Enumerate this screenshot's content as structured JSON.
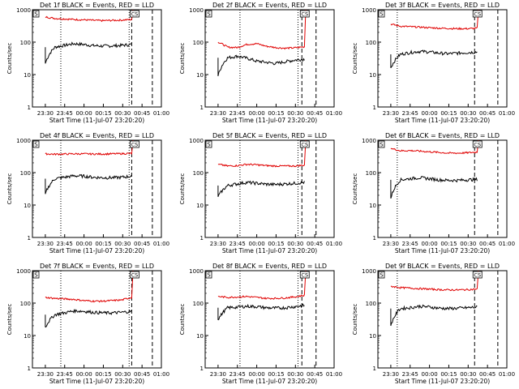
{
  "figure": {
    "xlabel": "Start Time (11-Jul-07 23:20:20)",
    "ylabel": "Counts/sec",
    "x_ticks": [
      "23:30",
      "23:45",
      "00:00",
      "00:15",
      "00:30",
      "00:45",
      "01:00"
    ],
    "y_ticks": [
      "1",
      "10",
      "100",
      "1000"
    ],
    "flag_left": "S",
    "flag_right": "CS"
  },
  "colors": {
    "events": "#000000",
    "lld": "#e00000",
    "axes": "#000000",
    "background": "#ffffff"
  },
  "chart_data": [
    {
      "type": "line",
      "title": "Det 1f BLACK = Events, RED = LLD",
      "yscale": "log",
      "ylim": [
        1,
        1000
      ],
      "series": [
        {
          "name": "Events",
          "color": "#000000",
          "values": [
            22,
            70,
            80,
            90,
            85,
            78,
            76,
            77,
            80,
            85
          ]
        },
        {
          "name": "LLD",
          "color": "#e00000",
          "values": [
            600,
            540,
            520,
            500,
            490,
            470,
            460,
            470,
            480,
            500
          ]
        }
      ],
      "spike": {
        "name": "LLD",
        "peak": 1000
      },
      "markers": {
        "dotted": [
          "23:42",
          "00:35"
        ],
        "dashed": [
          "00:37",
          "00:53"
        ]
      }
    },
    {
      "type": "line",
      "title": "Det 2f BLACK = Events, RED = LLD",
      "yscale": "log",
      "ylim": [
        1,
        1000
      ],
      "series": [
        {
          "name": "Events",
          "color": "#000000",
          "values": [
            9,
            33,
            37,
            32,
            26,
            24,
            22,
            25,
            28,
            30
          ]
        },
        {
          "name": "LLD",
          "color": "#e00000",
          "values": [
            100,
            70,
            68,
            85,
            90,
            75,
            68,
            65,
            67,
            72
          ]
        }
      ],
      "spike": {
        "name": "LLD",
        "peak": 1000
      },
      "markers": {
        "dotted": [
          "23:47",
          "00:32"
        ],
        "dashed": [
          "00:35",
          "00:46"
        ]
      }
    },
    {
      "type": "line",
      "title": "Det 3f BLACK = Events, RED = LLD",
      "yscale": "log",
      "ylim": [
        1,
        1000
      ],
      "series": [
        {
          "name": "Events",
          "color": "#000000",
          "values": [
            16,
            42,
            48,
            52,
            50,
            46,
            44,
            46,
            48,
            50
          ]
        },
        {
          "name": "LLD",
          "color": "#e00000",
          "values": [
            360,
            310,
            300,
            290,
            280,
            270,
            265,
            260,
            260,
            270
          ]
        }
      ],
      "spike": {
        "name": "LLD",
        "peak": 1000
      },
      "markers": {
        "dotted": [
          "23:35"
        ],
        "dashed": [
          "00:35",
          "00:53"
        ]
      }
    },
    {
      "type": "line",
      "title": "Det 4f BLACK = Events, RED = LLD",
      "yscale": "log",
      "ylim": [
        1,
        1000
      ],
      "series": [
        {
          "name": "Events",
          "color": "#000000",
          "values": [
            22,
            65,
            72,
            80,
            78,
            72,
            70,
            70,
            72,
            78
          ]
        },
        {
          "name": "LLD",
          "color": "#e00000",
          "values": [
            380,
            370,
            375,
            380,
            380,
            375,
            375,
            380,
            385,
            390
          ]
        }
      ],
      "spike": {
        "name": "LLD",
        "peak": 1000
      },
      "markers": {
        "dotted": [
          "23:42",
          "00:35"
        ],
        "dashed": [
          "00:37",
          "00:53"
        ]
      }
    },
    {
      "type": "line",
      "title": "Det 5f BLACK = Events, RED = LLD",
      "yscale": "log",
      "ylim": [
        1,
        1000
      ],
      "series": [
        {
          "name": "Events",
          "color": "#000000",
          "values": [
            18,
            40,
            45,
            50,
            47,
            44,
            43,
            45,
            47,
            50
          ]
        },
        {
          "name": "LLD",
          "color": "#e00000",
          "values": [
            180,
            160,
            165,
            180,
            175,
            165,
            160,
            160,
            160,
            170
          ]
        }
      ],
      "spike": {
        "name": "LLD",
        "peak": 1000
      },
      "markers": {
        "dotted": [
          "23:47",
          "00:32"
        ],
        "dashed": [
          "00:35",
          "00:46"
        ]
      }
    },
    {
      "type": "line",
      "title": "Det 6f BLACK = Events, RED = LLD",
      "yscale": "log",
      "ylim": [
        1,
        1000
      ],
      "series": [
        {
          "name": "Events",
          "color": "#000000",
          "values": [
            16,
            60,
            65,
            70,
            65,
            60,
            58,
            58,
            60,
            62
          ]
        },
        {
          "name": "LLD",
          "color": "#e00000",
          "values": [
            560,
            470,
            480,
            460,
            440,
            420,
            400,
            400,
            410,
            430
          ]
        }
      ],
      "spike": {
        "name": "LLD",
        "peak": 1000
      },
      "markers": {
        "dotted": [
          "23:35"
        ],
        "dashed": [
          "00:35",
          "00:53"
        ]
      }
    },
    {
      "type": "line",
      "title": "Det 7f BLACK = Events, RED = LLD",
      "yscale": "log",
      "ylim": [
        1,
        1000
      ],
      "series": [
        {
          "name": "Events",
          "color": "#000000",
          "values": [
            18,
            44,
            50,
            58,
            56,
            52,
            50,
            50,
            52,
            56
          ]
        },
        {
          "name": "LLD",
          "color": "#e00000",
          "values": [
            150,
            140,
            135,
            130,
            120,
            115,
            115,
            120,
            125,
            150
          ]
        }
      ],
      "spike": {
        "name": "LLD",
        "peak": 1000
      },
      "markers": {
        "dotted": [
          "23:42",
          "00:35"
        ],
        "dashed": [
          "00:37",
          "00:53"
        ]
      }
    },
    {
      "type": "line",
      "title": "Det 8f BLACK = Events, RED = LLD",
      "yscale": "log",
      "ylim": [
        1,
        1000
      ],
      "series": [
        {
          "name": "Events",
          "color": "#000000",
          "values": [
            30,
            72,
            75,
            80,
            78,
            72,
            70,
            72,
            78,
            85
          ]
        },
        {
          "name": "LLD",
          "color": "#e00000",
          "values": [
            160,
            150,
            155,
            160,
            150,
            140,
            140,
            145,
            155,
            175
          ]
        }
      ],
      "spike": {
        "name": "LLD",
        "peak": 1000
      },
      "markers": {
        "dotted": [
          "23:47",
          "00:32"
        ],
        "dashed": [
          "00:35",
          "00:46"
        ]
      }
    },
    {
      "type": "line",
      "title": "Det 9f BLACK = Events, RED = LLD",
      "yscale": "log",
      "ylim": [
        1,
        1000
      ],
      "series": [
        {
          "name": "Events",
          "color": "#000000",
          "values": [
            20,
            68,
            72,
            80,
            76,
            70,
            68,
            70,
            72,
            75
          ]
        },
        {
          "name": "LLD",
          "color": "#e00000",
          "values": [
            330,
            300,
            290,
            280,
            270,
            260,
            255,
            255,
            260,
            270
          ]
        }
      ],
      "spike": {
        "name": "LLD",
        "peak": 1000
      },
      "markers": {
        "dotted": [
          "23:35"
        ],
        "dashed": [
          "00:35",
          "00:53"
        ]
      }
    }
  ]
}
